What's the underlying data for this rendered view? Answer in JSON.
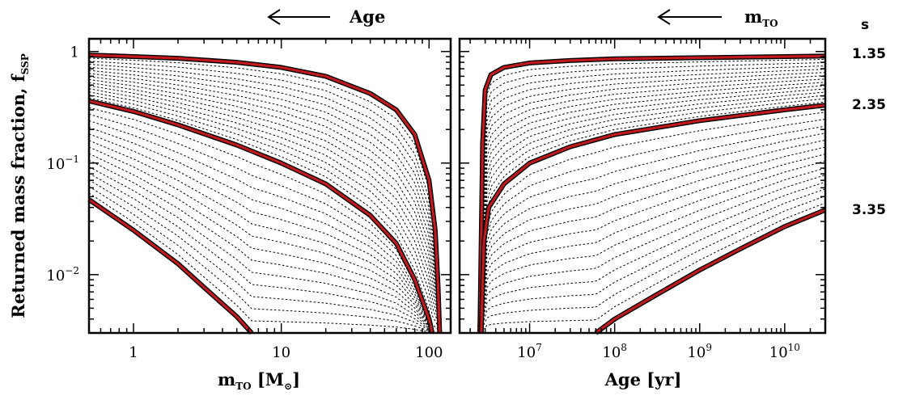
{
  "chart_data": [
    {
      "type": "line",
      "panel": "left",
      "xlabel": "m",
      "xlabel_sub": "TO",
      "xlabel_unit": " [M",
      "xlabel_unit_sub": "⊙",
      "xlabel_close": "]",
      "ylabel": "Returned mass fraction, f",
      "ylabel_sub": "SSP",
      "top_annotation": "Age",
      "x_scale": "log",
      "y_scale": "log",
      "xlim": [
        0.5,
        140
      ],
      "ylim": [
        0.003,
        1.3
      ],
      "xticks": [
        {
          "value": 1,
          "label": "1"
        },
        {
          "value": 10,
          "label": "10"
        },
        {
          "value": 100,
          "label": "100"
        }
      ],
      "yticks": [
        {
          "value": 1,
          "label": "1",
          "exp": ""
        },
        {
          "value": 0.1,
          "label": "10",
          "exp": "−1"
        },
        {
          "value": 0.01,
          "label": "10",
          "exp": "−2"
        }
      ],
      "highlighted_series": [
        {
          "s": 1.35,
          "x": [
            0.5,
            1,
            2,
            5,
            10,
            20,
            40,
            60,
            80,
            100,
            110,
            115,
            118
          ],
          "y": [
            0.93,
            0.9,
            0.87,
            0.8,
            0.72,
            0.6,
            0.42,
            0.3,
            0.18,
            0.07,
            0.025,
            0.008,
            0.003
          ]
        },
        {
          "s": 2.35,
          "x": [
            0.5,
            1,
            2,
            5,
            10,
            20,
            40,
            60,
            80,
            100,
            105
          ],
          "y": [
            0.36,
            0.29,
            0.22,
            0.145,
            0.1,
            0.065,
            0.034,
            0.019,
            0.009,
            0.004,
            0.003
          ]
        },
        {
          "s": 3.35,
          "x": [
            0.5,
            1,
            2,
            3,
            5,
            6.3
          ],
          "y": [
            0.047,
            0.025,
            0.0125,
            0.0077,
            0.0042,
            0.003
          ]
        }
      ],
      "guide_series_count": 30
    },
    {
      "type": "line",
      "panel": "right",
      "xlabel": "Age [yr]",
      "top_annotation": "m",
      "top_annotation_sub": "TO",
      "x_scale": "log",
      "y_scale": "log",
      "xlim": [
        1500000,
        30000000000
      ],
      "ylim": [
        0.003,
        1.3
      ],
      "xticks": [
        {
          "value": 10000000,
          "label": "10",
          "exp": "7"
        },
        {
          "value": 100000000,
          "label": "10",
          "exp": "8"
        },
        {
          "value": 1000000000,
          "label": "10",
          "exp": "9"
        },
        {
          "value": 10000000000,
          "label": "10",
          "exp": "10"
        }
      ],
      "highlighted_series": [
        {
          "s": 1.35,
          "x": [
            2600000,
            2800000,
            3000000,
            3500000,
            5000000,
            10000000,
            30000000,
            100000000,
            1000000000,
            10000000000,
            30000000000
          ],
          "y": [
            0.003,
            0.15,
            0.45,
            0.62,
            0.72,
            0.79,
            0.83,
            0.86,
            0.88,
            0.9,
            0.91
          ]
        },
        {
          "s": 2.35,
          "x": [
            2700000,
            2900000,
            3300000,
            5000000,
            10000000,
            30000000,
            100000000,
            1000000000,
            10000000000,
            30000000000
          ],
          "y": [
            0.003,
            0.02,
            0.04,
            0.065,
            0.1,
            0.14,
            0.18,
            0.24,
            0.3,
            0.33
          ]
        },
        {
          "s": 3.35,
          "x": [
            60000000,
            100000000,
            300000000,
            1000000000,
            3000000000,
            10000000000,
            30000000000
          ],
          "y": [
            0.003,
            0.004,
            0.0065,
            0.011,
            0.017,
            0.027,
            0.038
          ]
        }
      ],
      "guide_series_count": 30
    }
  ],
  "slope_header": "s",
  "slope_labels": [
    "1.35",
    "2.35",
    "3.35"
  ],
  "colors": {
    "highlight": "#c0191e",
    "highlight_outline": "#000000",
    "guide": "#000000",
    "axes": "#000000",
    "background": "#ffffff"
  }
}
